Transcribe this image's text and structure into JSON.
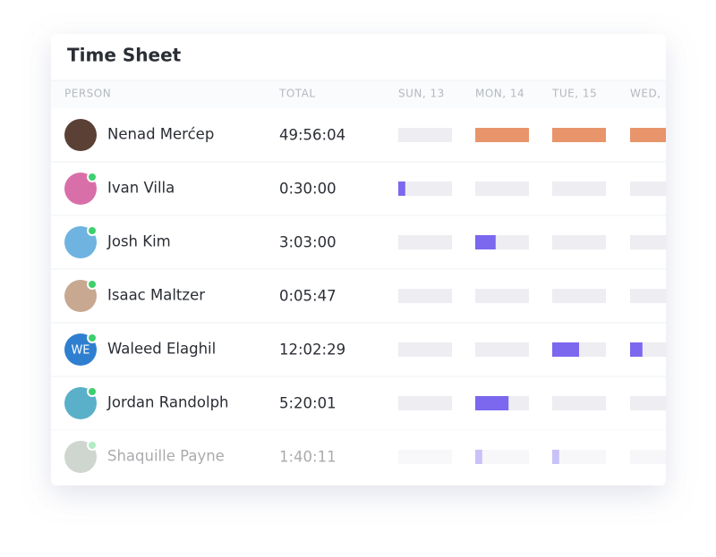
{
  "header": {
    "title": "Time Sheet"
  },
  "table": {
    "columns": [
      "PERSON",
      "TOTAL",
      "SUN, 13",
      "MON, 14",
      "TUE, 15",
      "WED,"
    ],
    "track_color": "#ededf2",
    "rows": [
      {
        "name": "Nenad Merćep",
        "total": "49:56:04",
        "avatar_color": "#5a4035",
        "online": false,
        "bar_color": "#e8956b",
        "days": [
          0,
          1,
          1,
          1
        ]
      },
      {
        "name": "Ivan Villa",
        "total": "0:30:00",
        "avatar_color": "#d96fa8",
        "online": true,
        "bar_color": "#7b68ee",
        "days": [
          0.13,
          0,
          0,
          0
        ]
      },
      {
        "name": "Josh Kim",
        "total": "3:03:00",
        "avatar_color": "#6fb3e0",
        "online": true,
        "bar_color": "#7b68ee",
        "days": [
          0,
          0.38,
          0,
          0
        ]
      },
      {
        "name": "Isaac Maltzer",
        "total": "0:05:47",
        "avatar_color": "#c8a890",
        "online": true,
        "bar_color": "#7b68ee",
        "days": [
          0,
          0,
          0,
          0
        ]
      },
      {
        "name": "Waleed Elaghil",
        "initials": "WE",
        "total": "12:02:29",
        "avatar_color": "#2f7fd0",
        "online": true,
        "bar_color": "#7b68ee",
        "days": [
          0,
          0,
          0.5,
          0.23
        ]
      },
      {
        "name": "Jordan Randolph",
        "total": "5:20:01",
        "avatar_color": "#5ab0c8",
        "online": true,
        "bar_color": "#7b68ee",
        "days": [
          0,
          0.62,
          0,
          0
        ]
      },
      {
        "name": "Shaquille Payne",
        "total": "1:40:11",
        "avatar_color": "#8a9a8a",
        "online": true,
        "bar_color": "#7b68ee",
        "days": [
          0,
          0.13,
          0.13,
          0
        ],
        "faded": true
      }
    ]
  }
}
